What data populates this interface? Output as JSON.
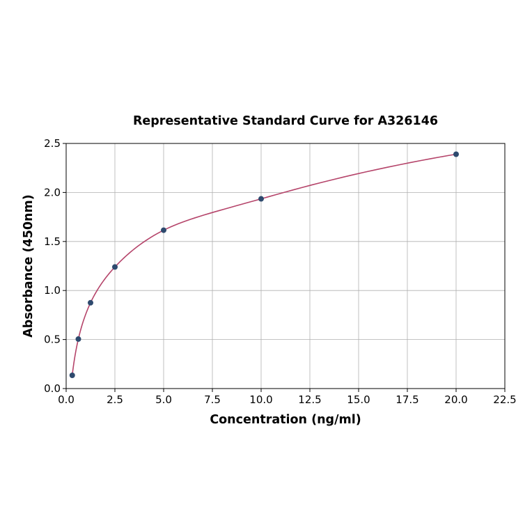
{
  "chart_data": {
    "type": "scatter",
    "title": "Representative Standard Curve for A326146",
    "xlabel": "Concentration (ng/ml)",
    "ylabel": "Absorbance (450nm)",
    "xlim": [
      0,
      22.5
    ],
    "ylim": [
      0,
      2.5
    ],
    "xticks": [
      "0.0",
      "2.5",
      "5.0",
      "7.5",
      "10.0",
      "12.5",
      "15.0",
      "17.5",
      "20.0",
      "22.5"
    ],
    "yticks": [
      "0.0",
      "0.5",
      "1.0",
      "1.5",
      "2.0",
      "2.5"
    ],
    "grid": true,
    "points": {
      "x": [
        0.3125,
        0.625,
        1.25,
        2.5,
        5,
        10,
        20
      ],
      "y": [
        0.135,
        0.505,
        0.875,
        1.24,
        1.615,
        1.935,
        2.39
      ]
    },
    "fit_curve": true,
    "colors": {
      "points": "#2e4a6e",
      "curve": "#b5446a",
      "grid": "#b0b0b0"
    }
  }
}
